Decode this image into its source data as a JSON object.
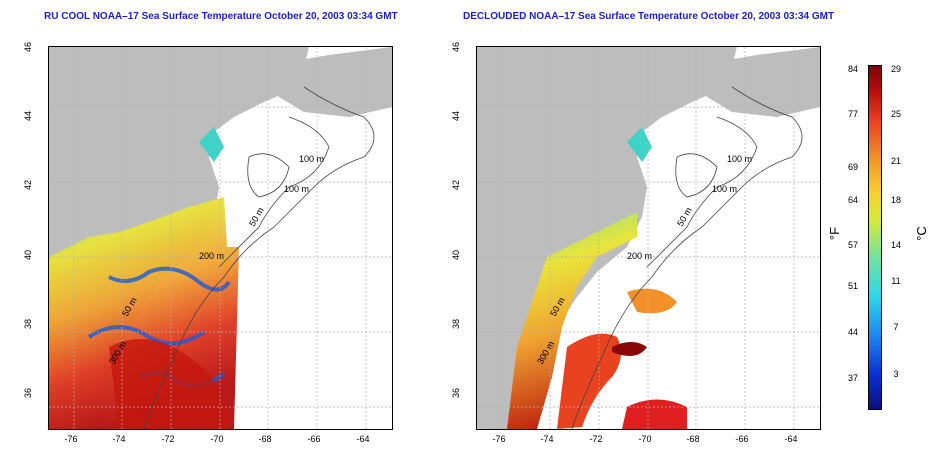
{
  "titles": {
    "left": "RU COOL NOAA–17 Sea Surface Temperature October 20, 2003 03:34 GMT",
    "right": "DECLOUDED NOAA–17 Sea Surface Temperature October 20, 2003 03:34 GMT"
  },
  "axes": {
    "lat_ticks": [
      "46",
      "44",
      "42",
      "40",
      "38",
      "36"
    ],
    "lon_ticks": [
      "-76",
      "-74",
      "-72",
      "-70",
      "-68",
      "-66",
      "-64"
    ]
  },
  "contours": {
    "label_100_a": "100 m",
    "label_100_b": "100 m",
    "label_50_a": "50 m",
    "label_200": "200 m",
    "label_50_b": "50 m",
    "label_300": "300 m"
  },
  "colorbar": {
    "fahrenheit_ticks": [
      "84",
      "77",
      "69",
      "64",
      "57",
      "51",
      "44",
      "37"
    ],
    "celsius_ticks": [
      "29",
      "25",
      "21",
      "18",
      "14",
      "11",
      "7",
      "3"
    ],
    "unit_f": "°F",
    "unit_c": "°C"
  },
  "colors": {
    "land": "#bdbdbd",
    "title": "#1f1fbf",
    "grid": "#b0b0b0"
  }
}
